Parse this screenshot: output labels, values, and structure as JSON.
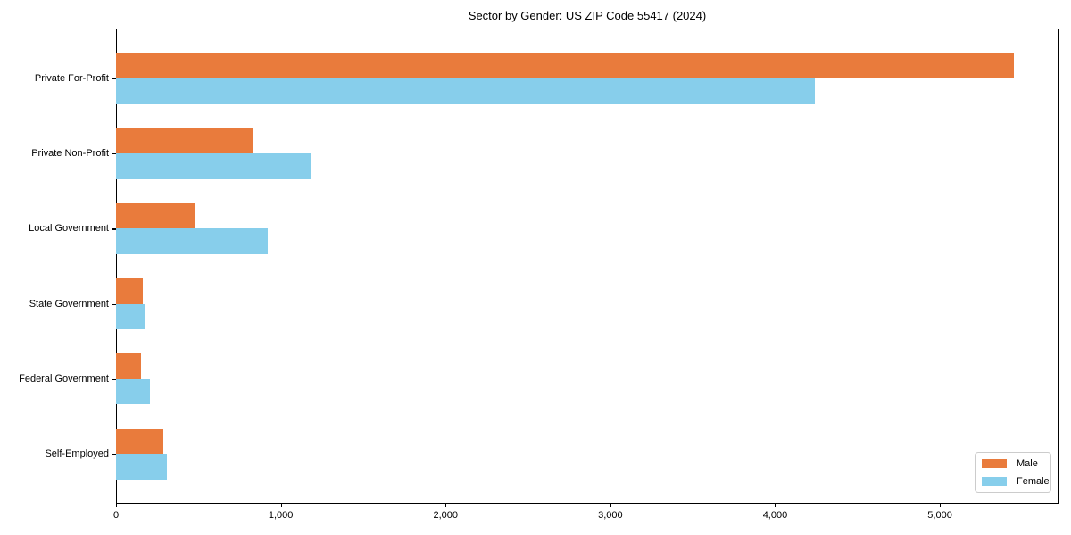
{
  "chart_data": {
    "type": "bar",
    "orientation": "horizontal",
    "title": "Sector by Gender: US ZIP Code 55417 (2024)",
    "categories": [
      "Private For-Profit",
      "Private Non-Profit",
      "Local Government",
      "State Government",
      "Federal Government",
      "Self-Employed"
    ],
    "series": [
      {
        "name": "Male",
        "color": "#E97B3C",
        "values": [
          5450,
          830,
          480,
          165,
          150,
          285
        ]
      },
      {
        "name": "Female",
        "color": "#87CEEB",
        "values": [
          4240,
          1180,
          920,
          175,
          205,
          310
        ]
      }
    ],
    "xlabel": "",
    "ylabel": "",
    "xlim": [
      0,
      5720
    ],
    "xticks": {
      "values": [
        0,
        1000,
        2000,
        3000,
        4000,
        5000
      ],
      "labels": [
        "0",
        "1,000",
        "2,000",
        "3,000",
        "4,000",
        "5,000"
      ]
    },
    "grid": false,
    "legend": {
      "position": "lower right",
      "labels": [
        "Male",
        "Female"
      ]
    }
  },
  "colors": {
    "male_bar": "#E97B3C",
    "female_bar": "#87CEEB",
    "axis": "#000000",
    "text": "#000000",
    "background": "#ffffff",
    "legend_border": "#cccccc"
  }
}
